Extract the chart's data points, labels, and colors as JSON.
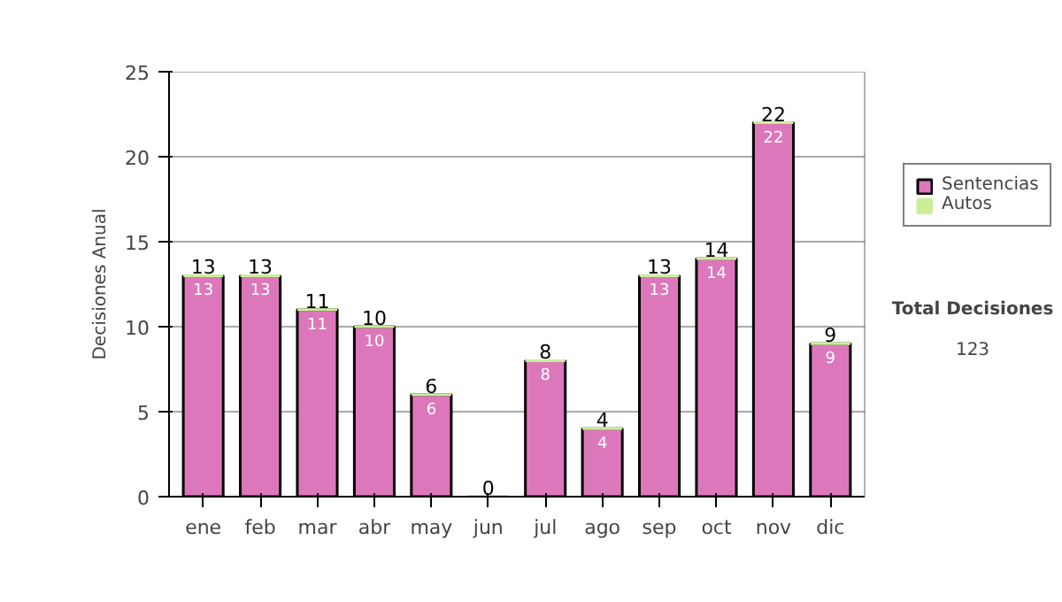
{
  "chart_data": {
    "type": "bar",
    "ylabel": "Decisiones Anual",
    "categories": [
      "ene",
      "feb",
      "mar",
      "abr",
      "may",
      "jun",
      "jul",
      "ago",
      "sep",
      "oct",
      "nov",
      "dic"
    ],
    "stacked": true,
    "series": [
      {
        "name": "Sentencias",
        "color": "#dd77bb",
        "values": [
          13,
          13,
          11,
          10,
          6,
          0,
          8,
          4,
          13,
          14,
          22,
          9
        ],
        "value_labels": [
          "13",
          "13",
          "11",
          "10",
          "6",
          null,
          "8",
          "4",
          "13",
          "14",
          "22",
          "9"
        ]
      },
      {
        "name": "Autos",
        "color": "#ccee99",
        "values": [
          0,
          0,
          0,
          0,
          0,
          0,
          0,
          0,
          0,
          0,
          0,
          0
        ]
      }
    ],
    "totals": [
      "13",
      "13",
      "11",
      "10",
      "6",
      "0",
      "8",
      "4",
      "13",
      "14",
      "22",
      "9"
    ],
    "ylim": [
      0,
      25
    ],
    "yticks": [
      0,
      5,
      10,
      15,
      20,
      25
    ],
    "grid": "y",
    "legend": "right",
    "annotations": [
      "Total Decisiones",
      "123"
    ]
  }
}
